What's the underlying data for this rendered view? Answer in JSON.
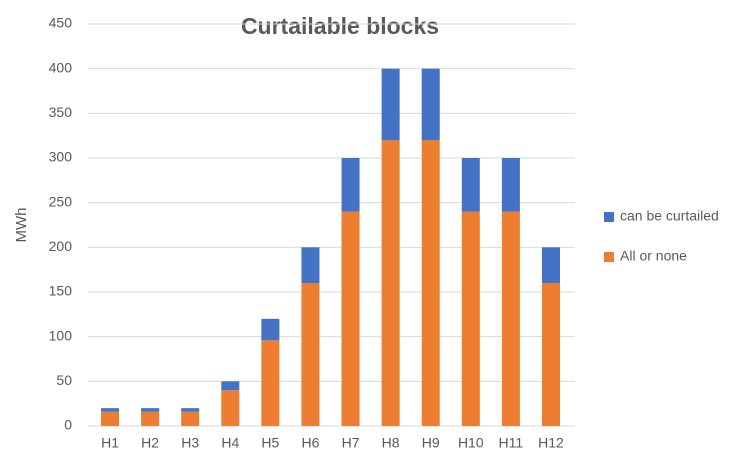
{
  "chart_data": {
    "type": "stacked_bar",
    "title": "Curtailable blocks",
    "y_label": "MWh",
    "categories": [
      "H1",
      "H2",
      "H3",
      "H4",
      "H5",
      "H6",
      "H7",
      "H8",
      "H9",
      "H10",
      "H11",
      "H12"
    ],
    "series": [
      {
        "name": "All or none",
        "color": "#ed7d31",
        "values": [
          16,
          16,
          16,
          40,
          96,
          160,
          240,
          320,
          320,
          240,
          240,
          160
        ]
      },
      {
        "name": "can be curtailed",
        "color": "#4472c4",
        "values": [
          4,
          4,
          4,
          10,
          24,
          40,
          60,
          80,
          80,
          60,
          60,
          40
        ]
      }
    ],
    "ylim": [
      0,
      450
    ],
    "yticks": [
      0,
      50,
      100,
      150,
      200,
      250,
      300,
      350,
      400,
      450
    ],
    "grid": true,
    "legend": "right"
  }
}
